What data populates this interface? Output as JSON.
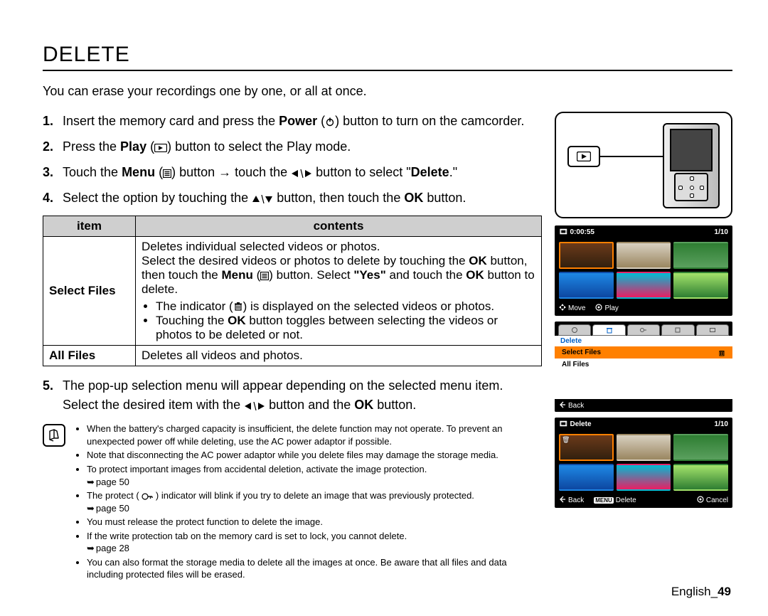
{
  "title": "DELETE",
  "intro": "You can erase your recordings one by one, or all at once.",
  "steps": {
    "s1a": "Insert the memory card and press the ",
    "s1b": "Power",
    "s1c": " button to turn on the camcorder.",
    "s2a": "Press the ",
    "s2b": "Play",
    "s2c": " button to select the Play mode.",
    "s3a": "Touch the ",
    "s3b": "Menu",
    "s3c": " button → touch the ",
    "s3d": " button to select \"",
    "s3e": "Delete",
    "s3f": ".\"",
    "s4a": "Select the option by touching the ",
    "s4b": " button, then touch the ",
    "s4c": "OK",
    "s4d": " button.",
    "s5a": "The pop-up selection menu will appear depending on the selected menu item. Select the desired item with the ",
    "s5b": " button and the ",
    "s5c": "OK",
    "s5d": " button."
  },
  "table": {
    "header_item": "item",
    "header_contents": "contents",
    "select_files_label": "Select Files",
    "all_files_label": "All Files",
    "sf_line1": "Deletes individual selected videos or photos.",
    "sf_line2a": "Select the desired videos or photos to delete by touching the ",
    "sf_line2_ok": "OK",
    "sf_line2b": " button, then touch the ",
    "sf_line2_menu": "Menu",
    "sf_line2c": " button. Select ",
    "sf_line2_yes": "\"Yes\"",
    "sf_line2d": " and touch the ",
    "sf_line2_ok2": "OK",
    "sf_line2e": " button to delete.",
    "sf_b1a": "The indicator (",
    "sf_b1b": ") is displayed on the selected videos or photos.",
    "sf_b2a": "Touching the ",
    "sf_b2_ok": "OK",
    "sf_b2b": " button toggles between selecting the videos or photos to be deleted or not.",
    "af_desc": "Deletes all videos and photos."
  },
  "notes": {
    "n1": "When the battery's charged capacity is insufficient, the delete function may not operate. To prevent an unexpected power off while deleting, use the AC power adaptor if possible.",
    "n2": "Note that disconnecting the AC power adaptor while you delete files may damage the storage media.",
    "n3": "To protect important images from accidental deletion, activate the image protection.",
    "n3ref": "page 50",
    "n4a": "The protect ( ",
    "n4b": " ) indicator will blink if you try to delete an image that was previously protected.",
    "n4ref": "page 50",
    "n5": "You must release the protect function to delete the image.",
    "n6": "If the write protection tab on the memory card is set to lock, you cannot delete.",
    "n6ref": "page 28",
    "n7": "You can also format the storage media to delete all the images at once. Be aware that all files and data including protected files will be erased."
  },
  "footer": {
    "lang": "English",
    "sep": "_",
    "page": "49"
  },
  "screens": {
    "s1": {
      "time": "0:00:55",
      "counter": "1/10",
      "ftr_move": "Move",
      "ftr_play": "Play",
      "thumbs": [
        {
          "bg": "linear-gradient(#6b3a1a,#32200e)",
          "sel": true
        },
        {
          "bg": "linear-gradient(#d8d0c0,#9a8660)"
        },
        {
          "bg": "linear-gradient(#2e7d32,#5aa05e)"
        },
        {
          "bg": "linear-gradient(#1e88e5,#0d47a1)"
        },
        {
          "bg": "linear-gradient(#00bcd4,#e91e63)"
        },
        {
          "bg": "linear-gradient(#a4e36b,#2e7d32)"
        }
      ]
    },
    "menu": {
      "title": "Delete",
      "item_sel": "Select Files",
      "item_all": "All Files",
      "ftr_back": "Back"
    },
    "s3": {
      "title": "Delete",
      "counter": "1/10",
      "thumbs": [
        {
          "bg": "linear-gradient(#6b3a1a,#32200e)",
          "sel": true,
          "trash": true
        },
        {
          "bg": "linear-gradient(#d8d0c0,#9a8660)"
        },
        {
          "bg": "linear-gradient(#2e7d32,#5aa05e)"
        },
        {
          "bg": "linear-gradient(#1e88e5,#0d47a1)"
        },
        {
          "bg": "linear-gradient(#00bcd4,#e91e63)"
        },
        {
          "bg": "linear-gradient(#a4e36b,#2e7d32)"
        }
      ],
      "ftr_back": "Back",
      "ftr_delete": "Delete",
      "ftr_menu": "MENU",
      "ftr_cancel": "Cancel"
    }
  },
  "colors": {
    "highlight": "#ff8000",
    "menu_title": "#0060c8"
  }
}
